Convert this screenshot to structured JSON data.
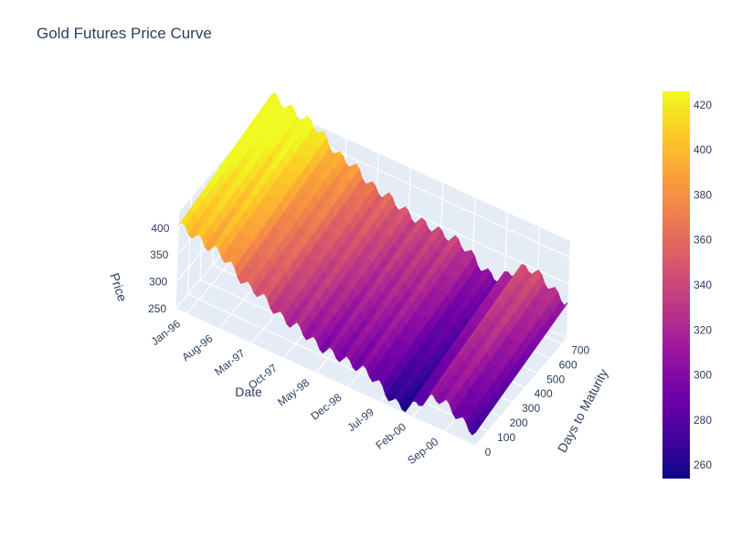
{
  "chart_data": {
    "type": "surface",
    "title": "Gold Futures Price Curve",
    "x_axis": {
      "label": "Date",
      "ticks": [
        "Jan-96",
        "Aug-96",
        "Mar-97",
        "Oct-97",
        "May-98",
        "Dec-98",
        "Jul-99",
        "Feb-00",
        "Sep-00"
      ],
      "range": [
        "1996-01",
        "2000-12"
      ]
    },
    "y_axis": {
      "label": "Days to Maturity",
      "ticks": [
        0,
        100,
        200,
        300,
        400,
        500,
        600,
        700
      ],
      "range": [
        0,
        740
      ]
    },
    "z_axis": {
      "label": "Price",
      "ticks": [
        250,
        300,
        350,
        400
      ],
      "range": [
        250,
        430
      ]
    },
    "colorbar": {
      "ticks": [
        260,
        280,
        300,
        320,
        340,
        360,
        380,
        400,
        420
      ],
      "range": [
        254,
        426
      ],
      "colorscale": "plasma"
    },
    "price_by_date_approx": [
      {
        "date": "1996-01",
        "price": 405
      },
      {
        "date": "1996-08",
        "price": 390
      },
      {
        "date": "1997-03",
        "price": 350
      },
      {
        "date": "1997-10",
        "price": 320
      },
      {
        "date": "1998-05",
        "price": 300
      },
      {
        "date": "1998-12",
        "price": 295
      },
      {
        "date": "1999-07",
        "price": 260
      },
      {
        "date": "2000-02",
        "price": 305
      },
      {
        "date": "2000-09",
        "price": 275
      }
    ],
    "term_premium_per_day": 0.055,
    "grid": true,
    "scene_background": "#e5ecf6"
  }
}
